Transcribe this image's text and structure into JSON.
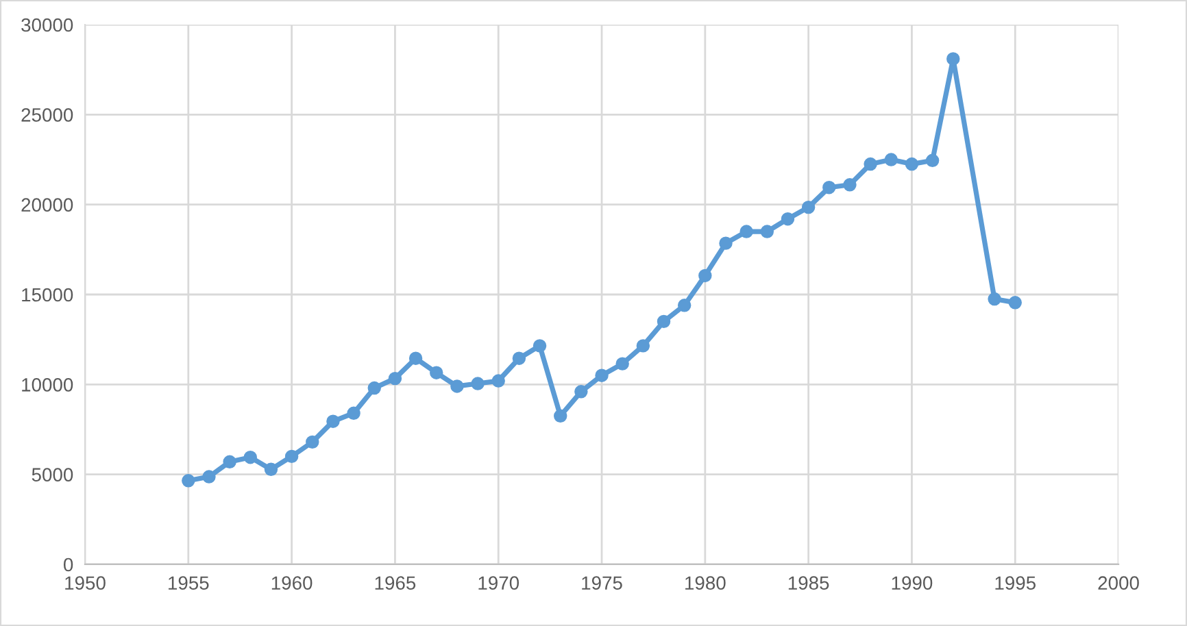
{
  "chart_data": {
    "type": "line",
    "x": [
      1955,
      1956,
      1957,
      1958,
      1959,
      1960,
      1961,
      1962,
      1963,
      1964,
      1965,
      1966,
      1967,
      1968,
      1969,
      1970,
      1971,
      1972,
      1973,
      1974,
      1975,
      1976,
      1977,
      1978,
      1979,
      1980,
      1981,
      1982,
      1983,
      1984,
      1985,
      1986,
      1987,
      1988,
      1989,
      1990,
      1991,
      1992,
      1994,
      1995
    ],
    "series": [
      {
        "color": "#5b9bd5",
        "values": [
          4650,
          4870,
          5700,
          5950,
          5280,
          6000,
          6800,
          7950,
          8400,
          9800,
          10330,
          11450,
          10650,
          9900,
          10050,
          10200,
          11450,
          12150,
          8250,
          9600,
          10500,
          11150,
          12150,
          13500,
          14400,
          16050,
          17850,
          18500,
          18500,
          19200,
          19850,
          20950,
          21100,
          22250,
          22500,
          22250,
          22450,
          28100,
          14750,
          14550
        ]
      }
    ],
    "xlim": [
      1950,
      2000
    ],
    "xticks": [
      1950,
      1955,
      1960,
      1965,
      1970,
      1975,
      1980,
      1985,
      1990,
      1995,
      2000
    ],
    "ylim": [
      0,
      30000
    ],
    "yticks": [
      0,
      5000,
      10000,
      15000,
      20000,
      25000,
      30000
    ],
    "grid": true,
    "marker": "circle",
    "line_style": "solid"
  }
}
